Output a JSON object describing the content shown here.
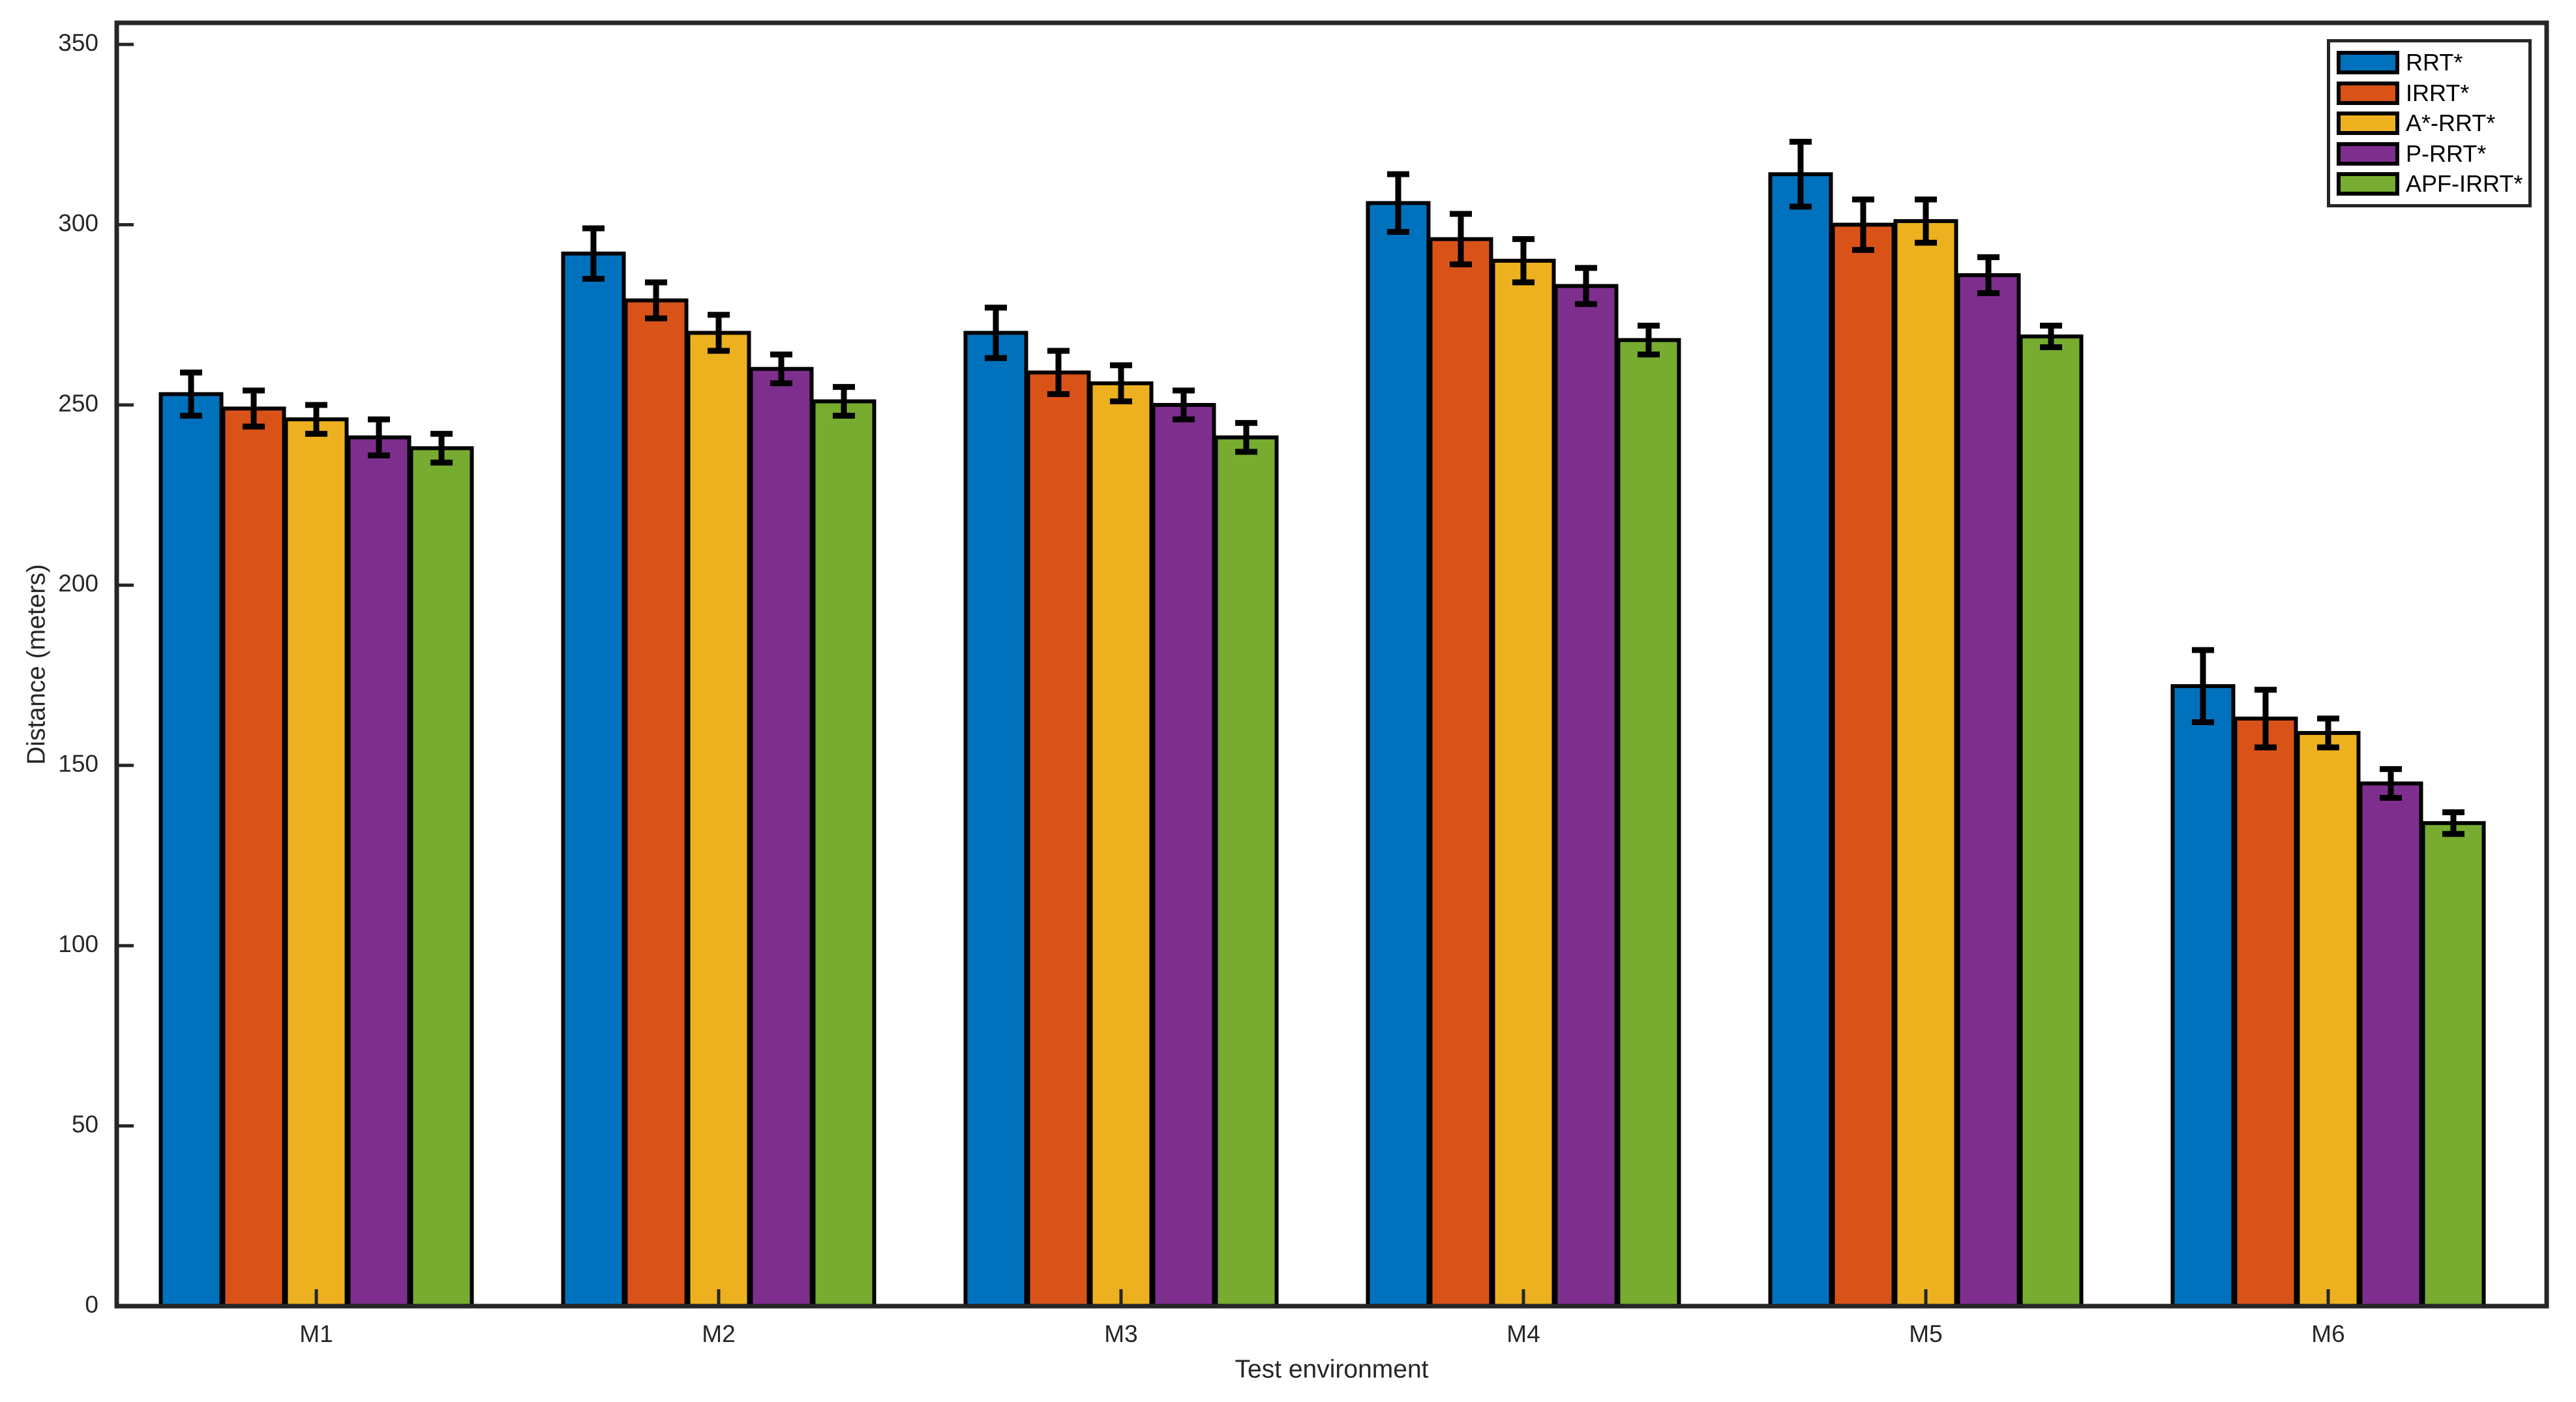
{
  "figure": {
    "background": "#ffffff",
    "axes_color": "#262626",
    "bar_edge_color": "#000000",
    "errorbar_color": "#000000"
  },
  "chart_data": {
    "type": "bar",
    "title": "",
    "xlabel": "Test environment",
    "ylabel": "Distance (meters)",
    "categories": [
      "M1",
      "M2",
      "M3",
      "M4",
      "M5",
      "M6"
    ],
    "series": [
      {
        "name": "RRT*",
        "color": "#0072BD",
        "values": [
          253,
          292,
          270,
          306,
          314,
          172
        ],
        "errors": [
          6,
          7,
          7,
          8,
          9,
          10
        ]
      },
      {
        "name": "IRRT*",
        "color": "#D95319",
        "values": [
          249,
          279,
          259,
          296,
          300,
          163
        ],
        "errors": [
          5,
          5,
          6,
          7,
          7,
          8
        ]
      },
      {
        "name": "A*-RRT*",
        "color": "#EDB120",
        "values": [
          246,
          270,
          256,
          290,
          301,
          159
        ],
        "errors": [
          4,
          5,
          5,
          6,
          6,
          4
        ]
      },
      {
        "name": "P-RRT*",
        "color": "#7E2F8E",
        "values": [
          241,
          260,
          250,
          283,
          286,
          145
        ],
        "errors": [
          5,
          4,
          4,
          5,
          5,
          4
        ]
      },
      {
        "name": "APF-IRRT*",
        "color": "#77AC30",
        "values": [
          238,
          251,
          241,
          268,
          269,
          134
        ],
        "errors": [
          4,
          4,
          4,
          4,
          3,
          3
        ]
      }
    ],
    "yticks": [
      0,
      50,
      100,
      150,
      200,
      250,
      300,
      350
    ],
    "ylim": [
      0,
      356
    ],
    "grid": false,
    "legend_position": "top-right",
    "legend_entries": [
      "RRT*",
      "IRRT*",
      "A*-RRT*",
      "P-RRT*",
      "APF-IRRT*"
    ]
  }
}
